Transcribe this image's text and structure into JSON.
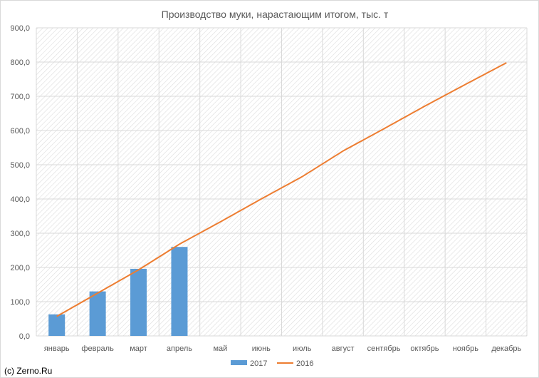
{
  "chart_data": {
    "type": "bar",
    "title": "Производство муки, нарастающим итогом, тыс. т",
    "categories": [
      "январь",
      "февраль",
      "март",
      "апрель",
      "май",
      "июнь",
      "июль",
      "август",
      "сентябрь",
      "октябрь",
      "ноябрь",
      "декабрь"
    ],
    "series": [
      {
        "name": "2017",
        "type": "bar",
        "color": "#5b9bd5",
        "values": [
          63,
          130,
          196,
          260,
          null,
          null,
          null,
          null,
          null,
          null,
          null,
          null
        ]
      },
      {
        "name": "2016",
        "type": "line",
        "color": "#ed7d31",
        "values": [
          57,
          125,
          193,
          268,
          333,
          400,
          465,
          540,
          605,
          671,
          735,
          798
        ]
      }
    ],
    "y_ticks": [
      "0,0",
      "100,0",
      "200,0",
      "300,0",
      "400,0",
      "500,0",
      "600,0",
      "700,0",
      "800,0",
      "900,0"
    ],
    "ylim": [
      0,
      900
    ],
    "xlabel": "",
    "ylabel": "",
    "grid": true,
    "plot_background": "diagonal-hatch",
    "legend_position": "bottom"
  },
  "credit": "(c) Zerno.Ru"
}
